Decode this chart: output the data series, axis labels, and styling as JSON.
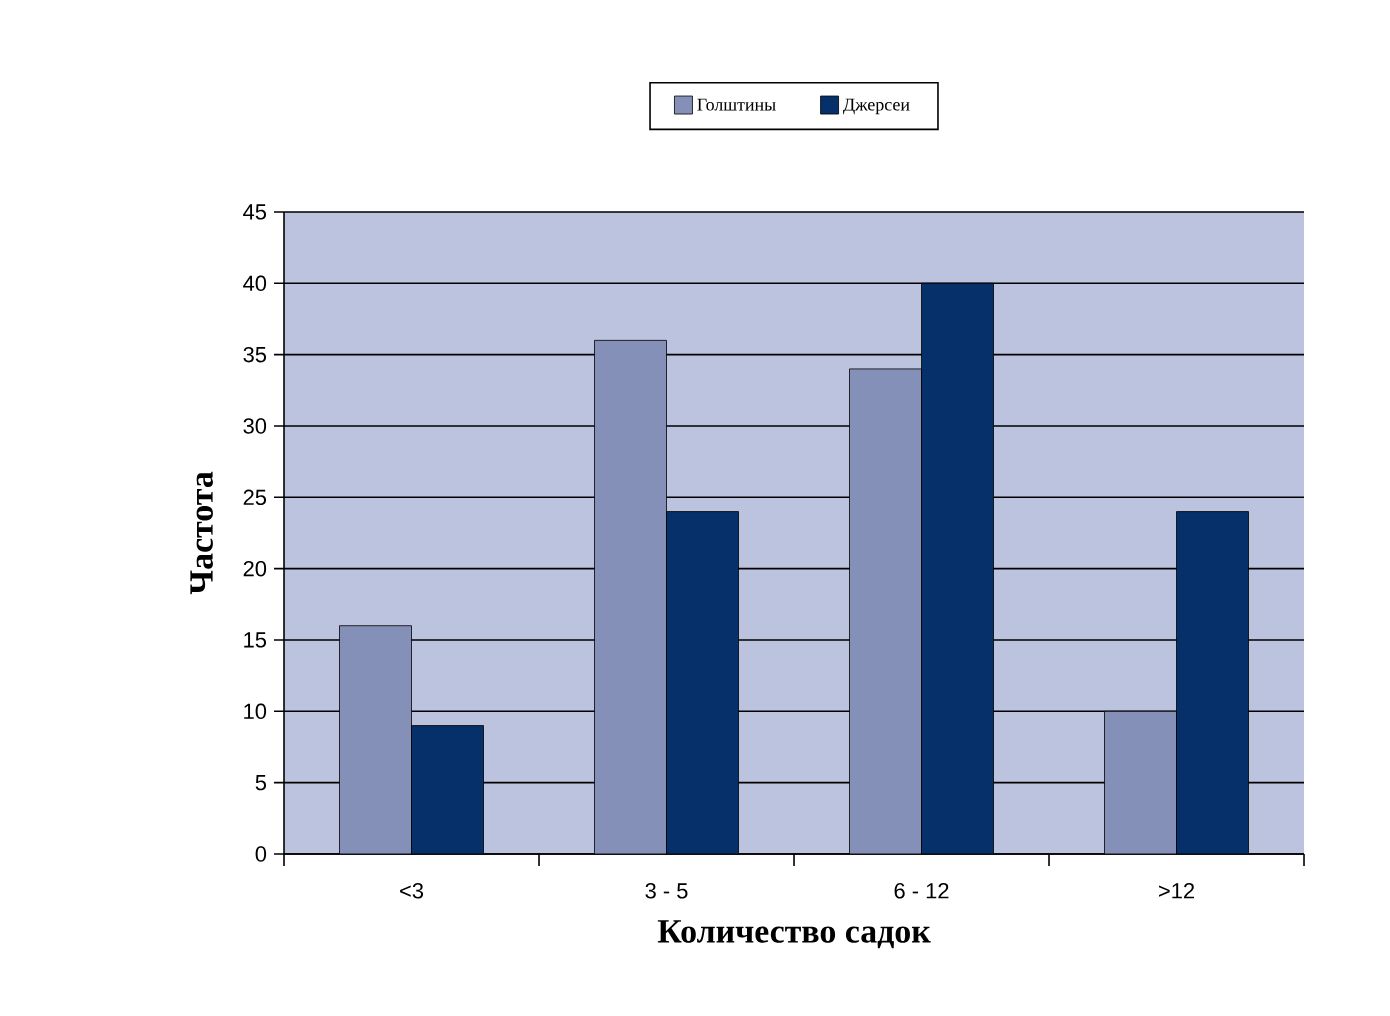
{
  "chart_data": {
    "type": "bar",
    "xlabel": "Количество садок",
    "ylabel": "Частота",
    "categories": [
      "<3",
      "3 - 5",
      "6 - 12",
      ">12"
    ],
    "series": [
      {
        "name": "Голштины",
        "color": "#8490b8",
        "values": [
          16,
          36,
          34,
          10
        ]
      },
      {
        "name": "Джерсеи",
        "color": "#05306a",
        "values": [
          9,
          24,
          40,
          24
        ]
      }
    ],
    "ylim": [
      0,
      45
    ],
    "yticks": [
      0,
      5,
      10,
      15,
      20,
      25,
      30,
      35,
      40,
      45
    ],
    "grid": "y",
    "legend": "top"
  }
}
